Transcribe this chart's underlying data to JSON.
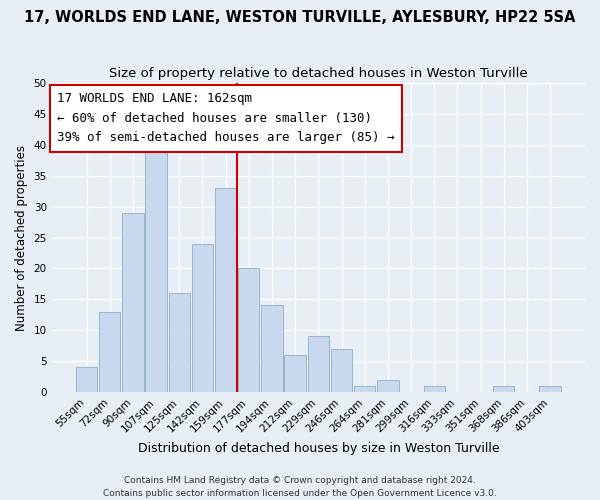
{
  "title": "17, WORLDS END LANE, WESTON TURVILLE, AYLESBURY, HP22 5SA",
  "subtitle": "Size of property relative to detached houses in Weston Turville",
  "xlabel": "Distribution of detached houses by size in Weston Turville",
  "ylabel": "Number of detached properties",
  "categories": [
    "55sqm",
    "72sqm",
    "90sqm",
    "107sqm",
    "125sqm",
    "142sqm",
    "159sqm",
    "177sqm",
    "194sqm",
    "212sqm",
    "229sqm",
    "246sqm",
    "264sqm",
    "281sqm",
    "299sqm",
    "316sqm",
    "333sqm",
    "351sqm",
    "368sqm",
    "386sqm",
    "403sqm"
  ],
  "values": [
    4,
    13,
    29,
    39,
    16,
    24,
    33,
    20,
    14,
    6,
    9,
    7,
    1,
    2,
    0,
    1,
    0,
    0,
    1,
    0,
    1
  ],
  "bar_color": "#c8d8ee",
  "bar_edge_color": "#9ab4cc",
  "vline_x": 6.5,
  "vline_color": "#cc0000",
  "ylim": [
    0,
    50
  ],
  "yticks": [
    0,
    5,
    10,
    15,
    20,
    25,
    30,
    35,
    40,
    45,
    50
  ],
  "annotation_title": "17 WORLDS END LANE: 162sqm",
  "annotation_line1": "← 60% of detached houses are smaller (130)",
  "annotation_line2": "39% of semi-detached houses are larger (85) →",
  "annotation_box_facecolor": "white",
  "annotation_box_edgecolor": "#cc0000",
  "footer_line1": "Contains HM Land Registry data © Crown copyright and database right 2024.",
  "footer_line2": "Contains public sector information licensed under the Open Government Licence v3.0.",
  "background_color": "#e8eef5",
  "grid_color": "#ffffff",
  "title_fontsize": 10.5,
  "subtitle_fontsize": 9.5,
  "ann_fontsize": 9,
  "xlabel_fontsize": 9,
  "ylabel_fontsize": 8.5,
  "tick_fontsize": 7.5,
  "footer_fontsize": 6.5
}
